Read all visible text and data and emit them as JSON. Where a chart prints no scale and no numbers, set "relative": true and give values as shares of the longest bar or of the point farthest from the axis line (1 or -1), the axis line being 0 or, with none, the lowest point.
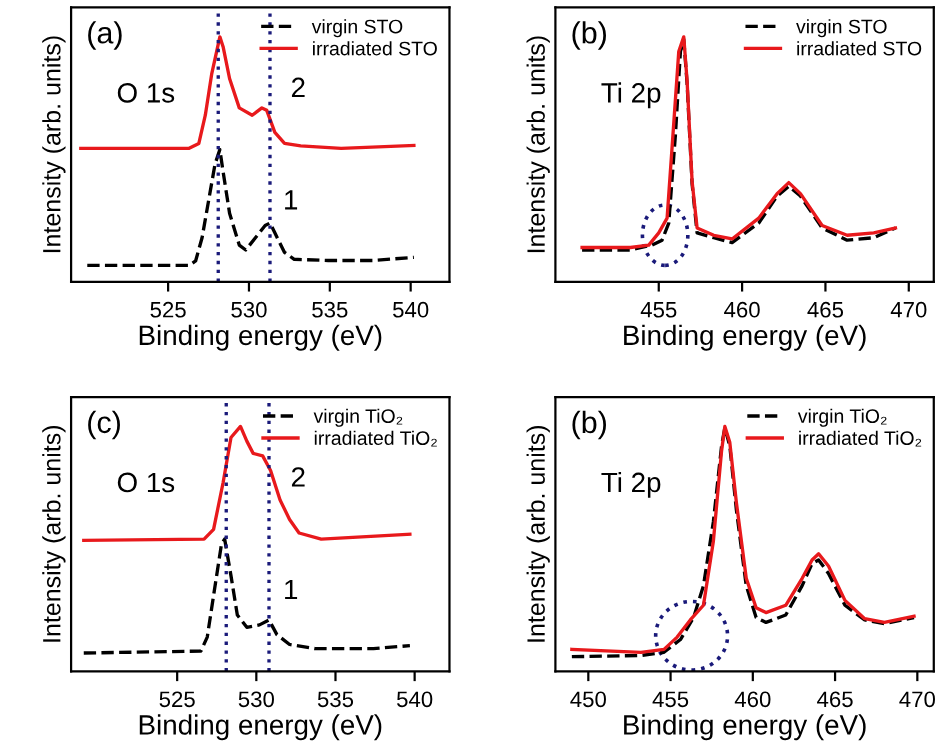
{
  "chart_data": [
    {
      "type": "line",
      "title": "(a)",
      "xlabel": "Binding energy (eV)",
      "ylabel": "Intensity (arb. units)",
      "relative": true,
      "tick_labels": "x",
      "legend": "top right",
      "xlim": [
        519,
        542.4
      ],
      "xticks": [
        525,
        530,
        535,
        540
      ],
      "annotations": [
        "O 1s",
        "2",
        "1"
      ],
      "ref_lines": [
        {
          "axis": "x",
          "value": 528.1,
          "color": "#1a1a7a",
          "line_style": "dotted"
        },
        {
          "axis": "x",
          "value": 531.3,
          "color": "#1a1a7a",
          "line_style": "dotted"
        }
      ],
      "series": [
        {
          "name": "virgin STO",
          "color": "#000000",
          "line_style": "dashed",
          "x": [
            520.0,
            526.3,
            526.7,
            527.1,
            527.5,
            527.9,
            528.2,
            528.4,
            528.8,
            529.4,
            529.8,
            530.4,
            531.0,
            531.3,
            531.6,
            532.2,
            532.8,
            534.9,
            537.7,
            540.2
          ],
          "values": [
            0.067,
            0.067,
            0.085,
            0.18,
            0.33,
            0.48,
            0.54,
            0.45,
            0.28,
            0.15,
            0.13,
            0.18,
            0.23,
            0.24,
            0.2,
            0.12,
            0.092,
            0.087,
            0.087,
            0.1
          ]
        },
        {
          "name": "irradiated STO",
          "color": "#e8191c",
          "line_style": "solid",
          "x": [
            519.6,
            526.3,
            526.9,
            527.3,
            527.7,
            528.2,
            528.4,
            528.8,
            529.4,
            530.2,
            530.8,
            531.1,
            531.6,
            532.2,
            533.2,
            535.7,
            540.2
          ],
          "values": [
            0.545,
            0.545,
            0.565,
            0.68,
            0.85,
            1.0,
            0.96,
            0.83,
            0.71,
            0.68,
            0.71,
            0.7,
            0.61,
            0.565,
            0.555,
            0.545,
            0.557
          ]
        }
      ]
    },
    {
      "type": "line",
      "title": "(b)",
      "xlabel": "Binding energy (eV)",
      "ylabel": "Intensity (arb. units)",
      "relative": true,
      "tick_labels": "x",
      "legend": "top right",
      "xlim": [
        448.8,
        471.5
      ],
      "xticks": [
        455,
        460,
        465,
        470
      ],
      "annotations": [
        "Ti 2p"
      ],
      "series": [
        {
          "name": "virgin STO",
          "color": "#000000",
          "line_style": "dashed",
          "x": [
            450.4,
            453.3,
            454.6,
            455.2,
            455.6,
            456.0,
            456.3,
            456.5,
            456.7,
            457.0,
            457.3,
            458.3,
            459.4,
            461.0,
            462.1,
            462.8,
            463.5,
            464.8,
            466.3,
            467.9,
            469.2
          ],
          "values": [
            0.13,
            0.13,
            0.15,
            0.17,
            0.24,
            0.6,
            0.94,
            0.99,
            0.81,
            0.4,
            0.2,
            0.18,
            0.16,
            0.24,
            0.35,
            0.39,
            0.35,
            0.22,
            0.17,
            0.18,
            0.22
          ]
        },
        {
          "name": "irradiated STO",
          "color": "#e8191c",
          "line_style": "solid",
          "x": [
            450.4,
            453.3,
            454.4,
            455.0,
            455.5,
            455.8,
            456.2,
            456.5,
            456.7,
            457.0,
            457.3,
            458.3,
            459.4,
            461.0,
            462.1,
            462.8,
            463.5,
            464.8,
            466.3,
            467.9,
            469.2
          ],
          "values": [
            0.14,
            0.14,
            0.15,
            0.2,
            0.26,
            0.55,
            0.94,
            1.0,
            0.82,
            0.41,
            0.22,
            0.19,
            0.175,
            0.26,
            0.36,
            0.405,
            0.36,
            0.23,
            0.19,
            0.2,
            0.22
          ]
        }
      ]
    },
    {
      "type": "line",
      "title": "(c)",
      "xlabel": "Binding energy (eV)",
      "ylabel": "Intensity (arb. units)",
      "relative": true,
      "tick_labels": "x",
      "legend": "top right",
      "xlim": [
        518.3,
        542.2
      ],
      "xticks": [
        525,
        530,
        535,
        540
      ],
      "annotations": [
        "O 1s",
        "2",
        "1"
      ],
      "ref_lines": [
        {
          "axis": "x",
          "value": 528.1,
          "color": "#1a1a7a",
          "line_style": "dotted"
        },
        {
          "axis": "x",
          "value": 530.8,
          "color": "#1a1a7a",
          "line_style": "dotted"
        }
      ],
      "series": [
        {
          "name": "virgin TiO₂",
          "color": "#000000",
          "line_style": "dashed",
          "x": [
            519.1,
            526.5,
            526.9,
            527.3,
            527.8,
            528.0,
            528.4,
            528.8,
            529.4,
            530.2,
            530.8,
            531.3,
            532.1,
            533.7,
            537.4,
            539.7
          ],
          "values": [
            0.075,
            0.083,
            0.14,
            0.31,
            0.52,
            0.54,
            0.39,
            0.23,
            0.18,
            0.19,
            0.21,
            0.15,
            0.11,
            0.093,
            0.093,
            0.105
          ]
        },
        {
          "name": "irradiated TiO₂",
          "color": "#e8191c",
          "line_style": "solid",
          "x": [
            519.1,
            526.7,
            527.3,
            527.9,
            528.4,
            529.0,
            529.4,
            529.8,
            530.4,
            530.9,
            531.5,
            532.1,
            532.7,
            534.1,
            539.7
          ],
          "values": [
            0.535,
            0.54,
            0.58,
            0.77,
            0.955,
            1.0,
            0.94,
            0.89,
            0.88,
            0.82,
            0.7,
            0.62,
            0.565,
            0.54,
            0.56
          ]
        }
      ]
    },
    {
      "type": "line",
      "title": "(b)",
      "xlabel": "Binding energy (eV)",
      "ylabel": "Intensity (arb. units)",
      "relative": true,
      "tick_labels": "x",
      "legend": "top right",
      "xlim": [
        448,
        471
      ],
      "xticks": [
        450,
        455,
        460,
        465,
        470
      ],
      "annotations": [
        "Ti 2p"
      ],
      "series": [
        {
          "name": "virgin TiO₂",
          "color": "#000000",
          "line_style": "dashed",
          "x": [
            449.0,
            453.2,
            454.6,
            455.6,
            456.4,
            457.0,
            457.6,
            458.1,
            458.3,
            458.6,
            459.0,
            459.6,
            460.2,
            460.8,
            462.0,
            463.0,
            463.6,
            464.0,
            464.6,
            465.6,
            466.8,
            468.0,
            469.8
          ],
          "values": [
            0.06,
            0.065,
            0.078,
            0.13,
            0.22,
            0.35,
            0.61,
            0.92,
            0.995,
            0.92,
            0.66,
            0.35,
            0.22,
            0.2,
            0.23,
            0.35,
            0.44,
            0.455,
            0.4,
            0.27,
            0.21,
            0.195,
            0.22
          ]
        },
        {
          "name": "irradiated TiO₂",
          "color": "#e8191c",
          "line_style": "solid",
          "x": [
            449.0,
            453.2,
            454.6,
            455.4,
            456.2,
            457.0,
            457.6,
            458.1,
            458.3,
            458.6,
            459.0,
            459.6,
            460.2,
            460.8,
            462.0,
            463.0,
            463.6,
            464.0,
            464.6,
            465.6,
            466.8,
            468.0,
            469.8
          ],
          "values": [
            0.09,
            0.078,
            0.09,
            0.14,
            0.21,
            0.27,
            0.53,
            0.9,
            1.0,
            0.935,
            0.69,
            0.38,
            0.26,
            0.24,
            0.27,
            0.38,
            0.455,
            0.48,
            0.43,
            0.29,
            0.215,
            0.2,
            0.225
          ]
        }
      ]
    }
  ]
}
